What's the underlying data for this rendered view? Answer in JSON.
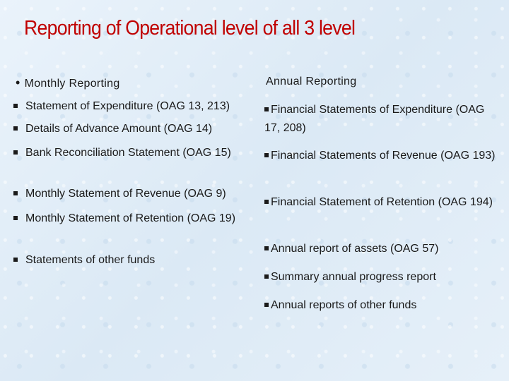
{
  "title": "Reporting of Operational level of all 3 level",
  "monthly": {
    "heading": "Monthly Reporting",
    "items": [
      "Statement of Expenditure (OAG 13, 213)",
      "Details of Advance Amount (OAG 14)",
      "Bank Reconciliation Statement (OAG 15)",
      "Monthly Statement of Revenue (OAG 9)",
      "Monthly Statement of Retention (OAG 19)",
      "Statements of other funds"
    ]
  },
  "annual": {
    "heading": "Annual Reporting",
    "items": [
      "Financial Statements of Expenditure (OAG 17, 208)",
      "Financial Statements of Revenue (OAG 193)",
      "Financial Statement of Retention (OAG 194)",
      "Annual report of assets (OAG 57)",
      "Summary annual progress report",
      "Annual reports of other funds"
    ]
  }
}
